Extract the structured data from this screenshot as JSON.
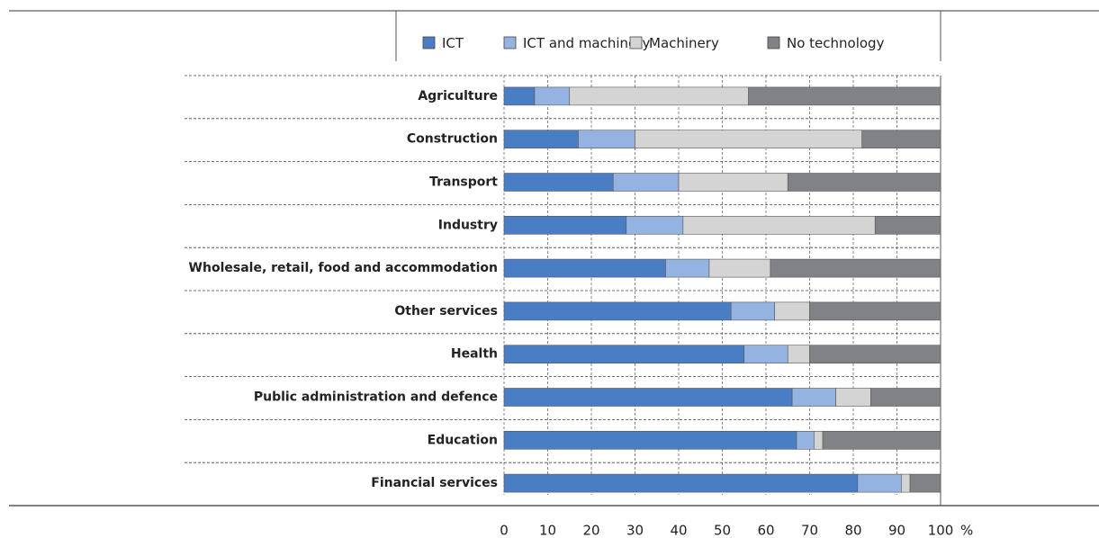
{
  "chart_data": {
    "type": "stacked-barh",
    "categories": [
      "Agriculture",
      "Construction",
      "Transport",
      "Industry",
      "Wholesale, retail, food and accommodation",
      "Other services",
      "Health",
      "Public administration and defence",
      "Education",
      "Financial services"
    ],
    "series": [
      {
        "name": "ICT",
        "color": "#4a7ec4",
        "values": [
          7,
          17,
          25,
          28,
          37,
          52,
          55,
          66,
          67,
          81
        ]
      },
      {
        "name": "ICT and machinery",
        "color": "#95b3e0",
        "values": [
          8,
          13,
          15,
          13,
          10,
          10,
          10,
          10,
          4,
          10
        ]
      },
      {
        "name": "Machinery",
        "color": "#d4d4d4",
        "values": [
          41,
          52,
          25,
          44,
          14,
          8,
          5,
          8,
          2,
          2
        ]
      },
      {
        "name": "No technology",
        "color": "#808285",
        "values": [
          44,
          18,
          35,
          15,
          39,
          30,
          30,
          16,
          27,
          7
        ]
      }
    ],
    "xlim": [
      0,
      100
    ],
    "xticks": [
      0,
      10,
      20,
      30,
      40,
      50,
      60,
      70,
      80,
      90,
      100
    ],
    "xlabel": "%",
    "grid": true
  }
}
